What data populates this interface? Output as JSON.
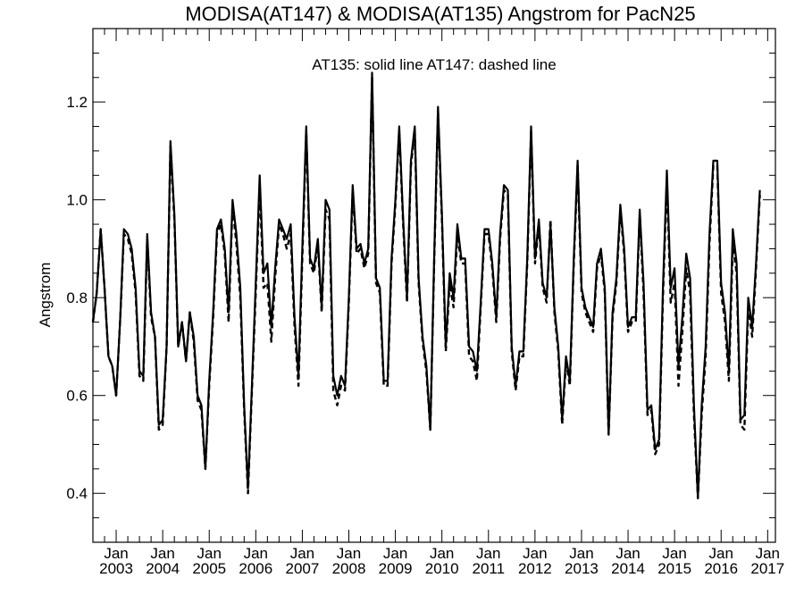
{
  "chart_data": {
    "type": "line",
    "title": "MODISA(AT147) & MODISA(AT135)  Angstrom for PacN25",
    "annotation": "AT135: solid line   AT147: dashed line",
    "ylabel": "Angstrom",
    "xlabel": "",
    "ylim": [
      0.3,
      1.35
    ],
    "xlim": [
      "2002-07-01",
      "2017-03-01"
    ],
    "y_ticks": [
      "0.4",
      "0.6",
      "0.8",
      "1.0",
      "1.2"
    ],
    "x_ticks": [
      {
        "month": "Jan",
        "year": "2003"
      },
      {
        "month": "Jan",
        "year": "2004"
      },
      {
        "month": "Jan",
        "year": "2005"
      },
      {
        "month": "Jan",
        "year": "2006"
      },
      {
        "month": "Jan",
        "year": "2007"
      },
      {
        "month": "Jan",
        "year": "2008"
      },
      {
        "month": "Jan",
        "year": "2009"
      },
      {
        "month": "Jan",
        "year": "2010"
      },
      {
        "month": "Jan",
        "year": "2011"
      },
      {
        "month": "Jan",
        "year": "2012"
      },
      {
        "month": "Jan",
        "year": "2013"
      },
      {
        "month": "Jan",
        "year": "2014"
      },
      {
        "month": "Jan",
        "year": "2015"
      },
      {
        "month": "Jan",
        "year": "2016"
      },
      {
        "month": "Jan",
        "year": "2017"
      }
    ],
    "grid": false,
    "line_color": "#000000",
    "start_month": "2002-07",
    "series": [
      {
        "name": "AT135",
        "style": "solid",
        "values": [
          0.75,
          0.81,
          0.94,
          0.82,
          0.68,
          0.66,
          0.6,
          0.75,
          0.94,
          0.93,
          0.9,
          0.82,
          0.65,
          0.64,
          0.93,
          0.77,
          0.72,
          0.54,
          0.55,
          0.7,
          1.12,
          0.97,
          0.7,
          0.75,
          0.67,
          0.77,
          0.72,
          0.6,
          0.58,
          0.45,
          0.63,
          0.77,
          0.94,
          0.96,
          0.9,
          0.77,
          1.0,
          0.93,
          0.82,
          0.58,
          0.41,
          0.62,
          0.83,
          1.05,
          0.85,
          0.87,
          0.74,
          0.86,
          0.96,
          0.94,
          0.92,
          0.95,
          0.76,
          0.64,
          0.9,
          1.15,
          0.88,
          0.86,
          0.92,
          0.78,
          1.0,
          0.98,
          0.64,
          0.6,
          0.64,
          0.62,
          0.8,
          1.03,
          0.9,
          0.91,
          0.87,
          0.9,
          1.26,
          0.84,
          0.82,
          0.63,
          0.63,
          0.88,
          1.0,
          1.15,
          0.96,
          0.8,
          1.08,
          1.15,
          0.84,
          0.72,
          0.66,
          0.53,
          0.88,
          1.19,
          0.97,
          0.7,
          0.85,
          0.8,
          0.95,
          0.88,
          0.88,
          0.7,
          0.69,
          0.65,
          0.79,
          0.94,
          0.94,
          0.87,
          0.76,
          0.93,
          1.03,
          1.02,
          0.7,
          0.62,
          0.69,
          0.69,
          0.88,
          1.15,
          0.88,
          0.96,
          0.83,
          0.8,
          0.95,
          0.78,
          0.7,
          0.55,
          0.68,
          0.63,
          0.88,
          1.08,
          0.82,
          0.78,
          0.76,
          0.74,
          0.87,
          0.9,
          0.82,
          0.52,
          0.77,
          0.84,
          0.99,
          0.9,
          0.74,
          0.76,
          0.76,
          0.98,
          0.83,
          0.57,
          0.58,
          0.49,
          0.51,
          0.82,
          1.06,
          0.82,
          0.86,
          0.66,
          0.76,
          0.89,
          0.84,
          0.58,
          0.39,
          0.58,
          0.7,
          0.93,
          1.08,
          1.08,
          0.83,
          0.77,
          0.65,
          0.94,
          0.87,
          0.55,
          0.56,
          0.8,
          0.74,
          0.87,
          1.02
        ]
      },
      {
        "name": "AT147",
        "style": "dashed",
        "values": [
          0.75,
          0.81,
          0.94,
          0.82,
          0.68,
          0.66,
          0.6,
          0.75,
          0.93,
          0.92,
          0.89,
          0.81,
          0.64,
          0.63,
          0.92,
          0.76,
          0.72,
          0.53,
          0.54,
          0.7,
          1.11,
          0.96,
          0.7,
          0.75,
          0.67,
          0.77,
          0.71,
          0.59,
          0.57,
          0.45,
          0.62,
          0.76,
          0.93,
          0.95,
          0.89,
          0.75,
          0.99,
          0.91,
          0.8,
          0.57,
          0.4,
          0.61,
          0.81,
          1.03,
          0.82,
          0.83,
          0.71,
          0.84,
          0.95,
          0.93,
          0.9,
          0.93,
          0.74,
          0.62,
          0.88,
          1.14,
          0.87,
          0.85,
          0.91,
          0.77,
          0.98,
          0.96,
          0.61,
          0.58,
          0.62,
          0.61,
          0.79,
          1.02,
          0.89,
          0.9,
          0.86,
          0.89,
          1.25,
          0.83,
          0.81,
          0.62,
          0.62,
          0.87,
          0.99,
          1.14,
          0.95,
          0.79,
          1.07,
          1.14,
          0.83,
          0.71,
          0.65,
          0.53,
          0.87,
          1.18,
          0.96,
          0.69,
          0.83,
          0.78,
          0.93,
          0.87,
          0.87,
          0.68,
          0.67,
          0.63,
          0.78,
          0.93,
          0.93,
          0.86,
          0.75,
          0.92,
          1.02,
          1.01,
          0.69,
          0.61,
          0.68,
          0.68,
          0.87,
          1.14,
          0.87,
          0.95,
          0.82,
          0.79,
          0.96,
          0.77,
          0.69,
          0.54,
          0.67,
          0.62,
          0.87,
          1.07,
          0.81,
          0.77,
          0.75,
          0.73,
          0.86,
          0.89,
          0.81,
          0.52,
          0.76,
          0.83,
          0.98,
          0.89,
          0.73,
          0.75,
          0.75,
          0.97,
          0.81,
          0.56,
          0.57,
          0.48,
          0.5,
          0.8,
          1.04,
          0.79,
          0.83,
          0.62,
          0.73,
          0.86,
          0.81,
          0.56,
          0.39,
          0.56,
          0.68,
          0.91,
          1.07,
          1.07,
          0.81,
          0.75,
          0.63,
          0.91,
          0.85,
          0.54,
          0.53,
          0.78,
          0.72,
          0.86,
          1.01
        ]
      }
    ]
  }
}
